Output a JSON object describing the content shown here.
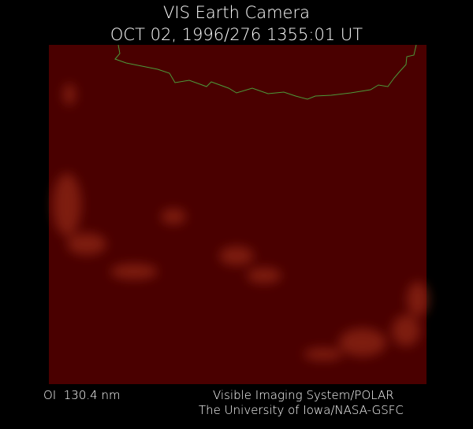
{
  "header": {
    "title": "VIS Earth Camera",
    "timestamp": "OCT 02, 1996/276 1355:01 UT"
  },
  "footer": {
    "wavelength": "OI  130.4 nm",
    "instrument": "Visible Imaging System/POLAR",
    "institution": "The University of Iowa/NASA-GSFC"
  }
}
